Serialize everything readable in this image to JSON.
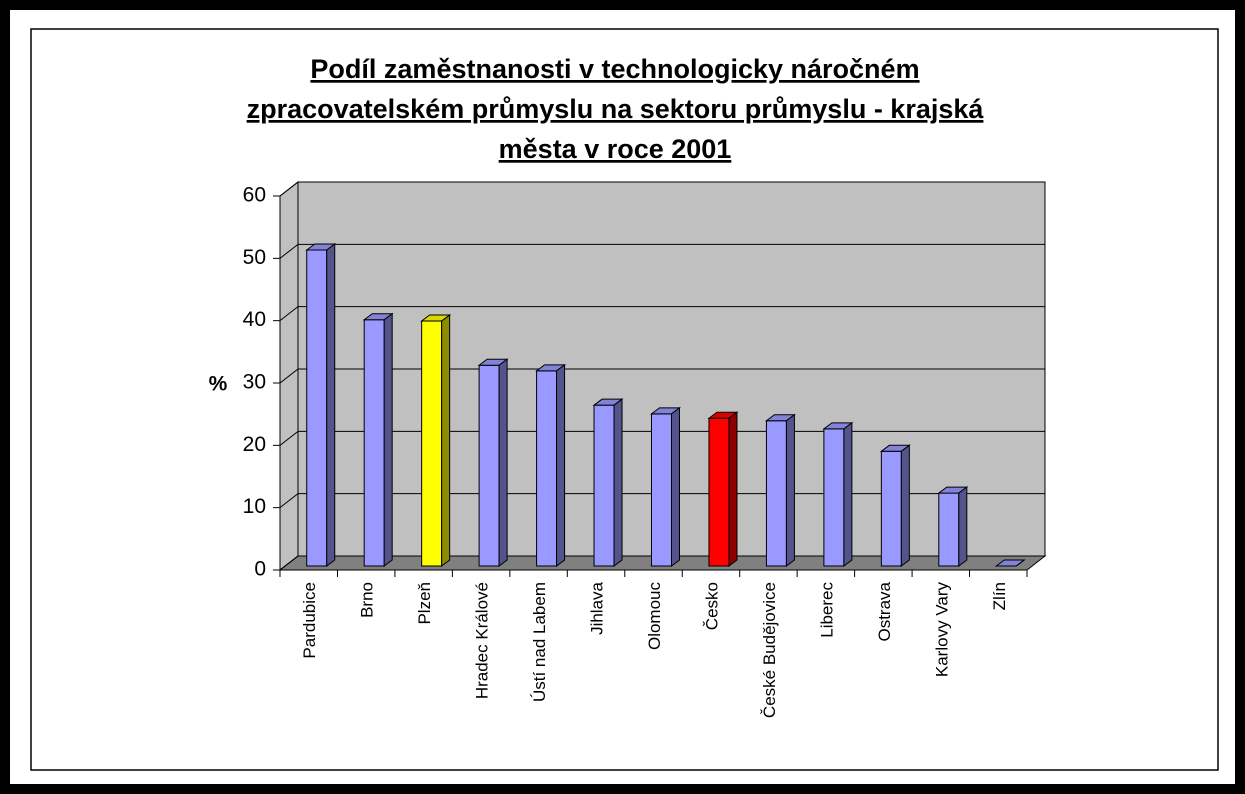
{
  "chart_data": {
    "type": "bar3d",
    "title": [
      "Podíl zaměstnanosti v technologicky náročném",
      "zpracovatelském průmyslu na sektoru průmyslu - krajská",
      "města v roce 2001"
    ],
    "y_label": "%",
    "categories": [
      "Pardubice",
      "Brno",
      "Plzeň",
      "Hradec Králové",
      "Ústí nad Labem",
      "Jihlava",
      "Olomouc",
      "Česko",
      "České Budějovice",
      "Liberec",
      "Ostrava",
      "Karlovy Vary",
      "Zlín"
    ],
    "values": [
      50.7,
      39.5,
      39.3,
      32.2,
      31.3,
      25.8,
      24.4,
      23.7,
      23.3,
      22.0,
      18.4,
      11.7,
      0
    ],
    "colors": [
      "#9999ff",
      "#9999ff",
      "#ffff00",
      "#9999ff",
      "#9999ff",
      "#9999ff",
      "#9999ff",
      "#ff0000",
      "#9999ff",
      "#9999ff",
      "#9999ff",
      "#9999ff",
      "#9999ff"
    ],
    "ylim": [
      0,
      60
    ],
    "yticks": [
      0,
      10,
      20,
      30,
      40,
      50,
      60
    ],
    "grid": true
  }
}
